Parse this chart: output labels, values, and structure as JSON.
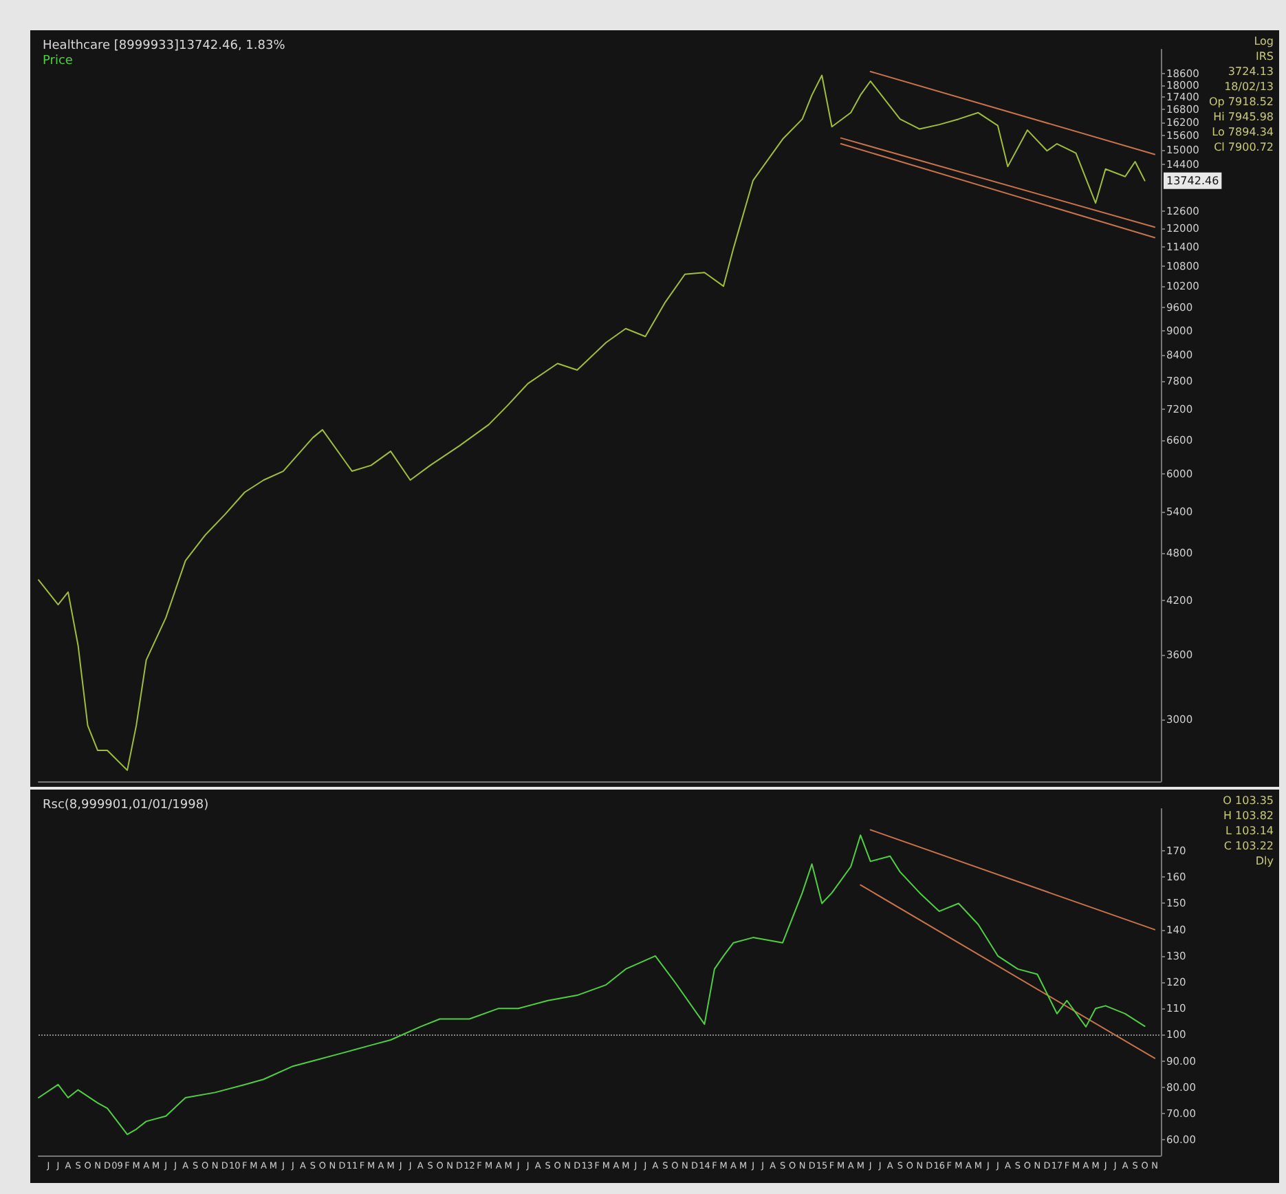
{
  "chart_data": [
    {
      "type": "line",
      "title": "Healthcare [8999933]13742.46, 1.83%",
      "subtitle": "Price",
      "log": "y",
      "tick_labels": "y",
      "xlim": [
        "2008-05-01",
        "2017-11-20"
      ],
      "ylim": [
        2520,
        19900
      ],
      "yticks": [
        3000,
        3600,
        4200,
        4800,
        5400,
        6000,
        6600,
        7200,
        7800,
        8400,
        9000,
        9600,
        10200,
        10800,
        11400,
        12000,
        12600,
        14400,
        15000,
        15600,
        16200,
        16800,
        17400,
        18000,
        18600
      ],
      "series": [
        {
          "color": "#9fbf3a",
          "x": [
            "2008-05",
            "2008-07",
            "2008-08",
            "2008-09",
            "2008-10",
            "2008-11",
            "2008-12",
            "2009-02",
            "2009-03",
            "2009-04",
            "2009-06",
            "2009-08",
            "2009-10",
            "2009-12",
            "2010-02",
            "2010-04",
            "2010-06",
            "2010-09",
            "2010-10",
            "2011-01",
            "2011-03",
            "2011-05",
            "2011-07",
            "2011-09",
            "2011-12",
            "2012-03",
            "2012-05",
            "2012-07",
            "2012-10",
            "2012-12",
            "2013-03",
            "2013-05",
            "2013-07",
            "2013-09",
            "2013-11",
            "2014-01",
            "2014-03",
            "2014-04",
            "2014-06",
            "2014-09",
            "2014-11",
            "2014-12",
            "2015-01",
            "2015-02",
            "2015-04",
            "2015-05",
            "2015-06",
            "2015-09",
            "2015-11",
            "2016-01",
            "2016-03",
            "2016-05",
            "2016-07",
            "2016-08",
            "2016-10",
            "2016-12",
            "2017-01",
            "2017-03",
            "2017-05",
            "2017-06",
            "2017-08",
            "2017-09",
            "2017-10"
          ],
          "values": [
            4450,
            4150,
            4300,
            3700,
            2950,
            2750,
            2750,
            2600,
            2950,
            3550,
            4000,
            4700,
            5050,
            5350,
            5700,
            5900,
            6050,
            6650,
            6800,
            6050,
            6150,
            6400,
            5900,
            6150,
            6500,
            6900,
            7300,
            7750,
            8200,
            8050,
            8700,
            9050,
            8850,
            9750,
            10550,
            10600,
            10200,
            11350,
            13750,
            15450,
            16350,
            17500,
            18500,
            16000,
            16650,
            17500,
            18200,
            16350,
            15900,
            16100,
            16350,
            16650,
            16050,
            14300,
            15850,
            14950,
            15250,
            14850,
            12900,
            14200,
            13900,
            14500,
            13742.46
          ]
        },
        {
          "color": "#c8734a",
          "x": [
            "2015-06",
            "2017-11"
          ],
          "values": [
            18700,
            14800
          ]
        },
        {
          "color": "#c8734a",
          "x": [
            "2015-03",
            "2017-11"
          ],
          "values": [
            15500,
            12050
          ]
        },
        {
          "color": "#c8734a",
          "x": [
            "2015-03",
            "2017-11"
          ],
          "values": [
            15250,
            11700
          ]
        }
      ],
      "annotations": [
        "Log",
        "IRS",
        "3724.13",
        "18/02/13",
        "Op 7918.52",
        "Hi 7945.98",
        "Lo 7894.34",
        "Cl 7900.72",
        {
          "text": "13742.46",
          "x": "2017-10",
          "y": 13742.46
        }
      ]
    },
    {
      "type": "line",
      "title": "Rsc(8,999901,01/01/1998)",
      "xlim": [
        "2008-05-01",
        "2017-11-20"
      ],
      "ylim": [
        54,
        186
      ],
      "yticks": [
        {
          "value": 60,
          "label": "60.00"
        },
        {
          "value": 70,
          "label": "70.00"
        },
        {
          "value": 80,
          "label": "80.00"
        },
        {
          "value": 90,
          "label": "90.00"
        },
        100,
        110,
        120,
        130,
        140,
        150,
        160,
        170
      ],
      "xticks": [
        {
          "value": "2008-06",
          "label": "J"
        },
        {
          "value": "2008-07",
          "label": "J"
        },
        {
          "value": "2008-08",
          "label": "A"
        },
        {
          "value": "2008-09",
          "label": "S"
        },
        {
          "value": "2008-10",
          "label": "O"
        },
        {
          "value": "2008-11",
          "label": "N"
        },
        {
          "value": "2008-12",
          "label": "D"
        },
        {
          "value": "2009-01",
          "label": "09"
        },
        {
          "value": "2009-02",
          "label": "F"
        },
        {
          "value": "2009-03",
          "label": "M"
        },
        {
          "value": "2009-04",
          "label": "A"
        },
        {
          "value": "2009-05",
          "label": "M"
        },
        {
          "value": "2009-06",
          "label": "J"
        },
        {
          "value": "2009-07",
          "label": "J"
        },
        {
          "value": "2009-08",
          "label": "A"
        },
        {
          "value": "2009-09",
          "label": "S"
        },
        {
          "value": "2009-10",
          "label": "O"
        },
        {
          "value": "2009-11",
          "label": "N"
        },
        {
          "value": "2009-12",
          "label": "D"
        },
        {
          "value": "2010-01",
          "label": "10"
        },
        {
          "value": "2010-02",
          "label": "F"
        },
        {
          "value": "2010-03",
          "label": "M"
        },
        {
          "value": "2010-04",
          "label": "A"
        },
        {
          "value": "2010-05",
          "label": "M"
        },
        {
          "value": "2010-06",
          "label": "J"
        },
        {
          "value": "2010-07",
          "label": "J"
        },
        {
          "value": "2010-08",
          "label": "A"
        },
        {
          "value": "2010-09",
          "label": "S"
        },
        {
          "value": "2010-10",
          "label": "O"
        },
        {
          "value": "2010-11",
          "label": "N"
        },
        {
          "value": "2010-12",
          "label": "D"
        },
        {
          "value": "2011-01",
          "label": "11"
        },
        {
          "value": "2011-02",
          "label": "F"
        },
        {
          "value": "2011-03",
          "label": "M"
        },
        {
          "value": "2011-04",
          "label": "A"
        },
        {
          "value": "2011-05",
          "label": "M"
        },
        {
          "value": "2011-06",
          "label": "J"
        },
        {
          "value": "2011-07",
          "label": "J"
        },
        {
          "value": "2011-08",
          "label": "A"
        },
        {
          "value": "2011-09",
          "label": "S"
        },
        {
          "value": "2011-10",
          "label": "O"
        },
        {
          "value": "2011-11",
          "label": "N"
        },
        {
          "value": "2011-12",
          "label": "D"
        },
        {
          "value": "2012-01",
          "label": "12"
        },
        {
          "value": "2012-02",
          "label": "F"
        },
        {
          "value": "2012-03",
          "label": "M"
        },
        {
          "value": "2012-04",
          "label": "A"
        },
        {
          "value": "2012-05",
          "label": "M"
        },
        {
          "value": "2012-06",
          "label": "J"
        },
        {
          "value": "2012-07",
          "label": "J"
        },
        {
          "value": "2012-08",
          "label": "A"
        },
        {
          "value": "2012-09",
          "label": "S"
        },
        {
          "value": "2012-10",
          "label": "O"
        },
        {
          "value": "2012-11",
          "label": "N"
        },
        {
          "value": "2012-12",
          "label": "D"
        },
        {
          "value": "2013-01",
          "label": "13"
        },
        {
          "value": "2013-02",
          "label": "F"
        },
        {
          "value": "2013-03",
          "label": "M"
        },
        {
          "value": "2013-04",
          "label": "A"
        },
        {
          "value": "2013-05",
          "label": "M"
        },
        {
          "value": "2013-06",
          "label": "J"
        },
        {
          "value": "2013-07",
          "label": "J"
        },
        {
          "value": "2013-08",
          "label": "A"
        },
        {
          "value": "2013-09",
          "label": "S"
        },
        {
          "value": "2013-10",
          "label": "O"
        },
        {
          "value": "2013-11",
          "label": "N"
        },
        {
          "value": "2013-12",
          "label": "D"
        },
        {
          "value": "2014-01",
          "label": "14"
        },
        {
          "value": "2014-02",
          "label": "F"
        },
        {
          "value": "2014-03",
          "label": "M"
        },
        {
          "value": "2014-04",
          "label": "A"
        },
        {
          "value": "2014-05",
          "label": "M"
        },
        {
          "value": "2014-06",
          "label": "J"
        },
        {
          "value": "2014-07",
          "label": "J"
        },
        {
          "value": "2014-08",
          "label": "A"
        },
        {
          "value": "2014-09",
          "label": "S"
        },
        {
          "value": "2014-10",
          "label": "O"
        },
        {
          "value": "2014-11",
          "label": "N"
        },
        {
          "value": "2014-12",
          "label": "D"
        },
        {
          "value": "2015-01",
          "label": "15"
        },
        {
          "value": "2015-02",
          "label": "F"
        },
        {
          "value": "2015-03",
          "label": "M"
        },
        {
          "value": "2015-04",
          "label": "A"
        },
        {
          "value": "2015-05",
          "label": "M"
        },
        {
          "value": "2015-06",
          "label": "J"
        },
        {
          "value": "2015-07",
          "label": "J"
        },
        {
          "value": "2015-08",
          "label": "A"
        },
        {
          "value": "2015-09",
          "label": "S"
        },
        {
          "value": "2015-10",
          "label": "O"
        },
        {
          "value": "2015-11",
          "label": "N"
        },
        {
          "value": "2015-12",
          "label": "D"
        },
        {
          "value": "2016-01",
          "label": "16"
        },
        {
          "value": "2016-02",
          "label": "F"
        },
        {
          "value": "2016-03",
          "label": "M"
        },
        {
          "value": "2016-04",
          "label": "A"
        },
        {
          "value": "2016-05",
          "label": "M"
        },
        {
          "value": "2016-06",
          "label": "J"
        },
        {
          "value": "2016-07",
          "label": "J"
        },
        {
          "value": "2016-08",
          "label": "A"
        },
        {
          "value": "2016-09",
          "label": "S"
        },
        {
          "value": "2016-10",
          "label": "O"
        },
        {
          "value": "2016-11",
          "label": "N"
        },
        {
          "value": "2016-12",
          "label": "D"
        },
        {
          "value": "2017-01",
          "label": "17"
        },
        {
          "value": "2017-02",
          "label": "F"
        },
        {
          "value": "2017-03",
          "label": "M"
        },
        {
          "value": "2017-04",
          "label": "A"
        },
        {
          "value": "2017-05",
          "label": "M"
        },
        {
          "value": "2017-06",
          "label": "J"
        },
        {
          "value": "2017-07",
          "label": "J"
        },
        {
          "value": "2017-08",
          "label": "A"
        },
        {
          "value": "2017-09",
          "label": "S"
        },
        {
          "value": "2017-10",
          "label": "O"
        },
        {
          "value": "2017-11",
          "label": "N"
        }
      ],
      "series": [
        {
          "color": "#4fd040",
          "x": [
            "2008-05",
            "2008-07",
            "2008-08",
            "2008-09",
            "2008-11",
            "2008-12",
            "2009-02",
            "2009-03",
            "2009-04",
            "2009-06",
            "2009-08",
            "2009-11",
            "2010-02",
            "2010-04",
            "2010-07",
            "2010-09",
            "2010-12",
            "2011-03",
            "2011-05",
            "2011-08",
            "2011-10",
            "2012-01",
            "2012-04",
            "2012-06",
            "2012-09",
            "2012-12",
            "2013-03",
            "2013-05",
            "2013-08",
            "2013-10",
            "2014-01",
            "2014-02",
            "2014-03",
            "2014-04",
            "2014-06",
            "2014-09",
            "2014-11",
            "2014-12",
            "2015-01",
            "2015-02",
            "2015-04",
            "2015-05",
            "2015-06",
            "2015-08",
            "2015-09",
            "2015-11",
            "2016-01",
            "2016-03",
            "2016-05",
            "2016-07",
            "2016-09",
            "2016-11",
            "2017-01",
            "2017-02",
            "2017-04",
            "2017-05",
            "2017-06",
            "2017-08",
            "2017-10"
          ],
          "values": [
            76,
            81,
            76,
            79,
            74,
            72,
            62,
            64,
            67,
            69,
            76,
            78,
            81,
            83,
            88,
            90,
            93,
            96,
            98,
            103,
            106,
            106,
            110,
            110,
            113,
            115,
            119,
            125,
            130,
            120,
            104,
            125,
            130,
            135,
            137,
            135,
            154,
            165,
            150,
            154,
            164,
            176,
            166,
            168,
            162,
            154,
            147,
            150,
            142,
            130,
            125,
            123,
            108,
            113,
            103,
            110,
            111,
            108,
            103.22
          ]
        },
        {
          "color": "#c8734a",
          "x": [
            "2015-06",
            "2017-11"
          ],
          "values": [
            178,
            140
          ]
        },
        {
          "color": "#c8734a",
          "x": [
            "2015-05",
            "2017-11"
          ],
          "values": [
            157,
            91
          ]
        }
      ],
      "ref_lines": [
        {
          "axis": "y",
          "value": 100,
          "color": "#888888",
          "line_style": "dotted"
        }
      ],
      "annotations": [
        "O 103.35",
        "H 103.82",
        "L 103.14",
        "C 103.22",
        "Dly"
      ]
    }
  ]
}
